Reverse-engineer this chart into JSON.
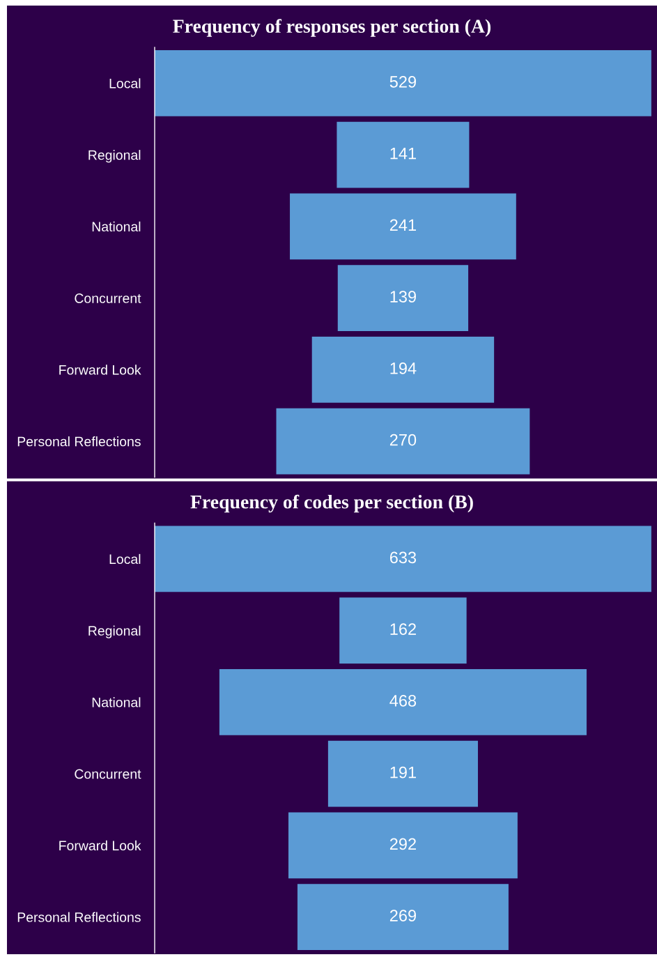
{
  "chart_data": [
    {
      "type": "other",
      "title": "Frequency of responses per section (A)",
      "categories": [
        "Local",
        "Regional",
        "National",
        "Concurrent",
        "Forward Look",
        "Personal Reflections"
      ],
      "values": [
        529,
        141,
        241,
        139,
        194,
        270
      ],
      "color": "#5b9bd5",
      "data_labels": true
    },
    {
      "type": "other",
      "title": "Frequency of codes per section (B)",
      "categories": [
        "Local",
        "Regional",
        "National",
        "Concurrent",
        "Forward Look",
        "Personal Reflections"
      ],
      "values": [
        633,
        162,
        468,
        191,
        292,
        269
      ],
      "color": "#5b9bd5",
      "data_labels": true
    }
  ]
}
